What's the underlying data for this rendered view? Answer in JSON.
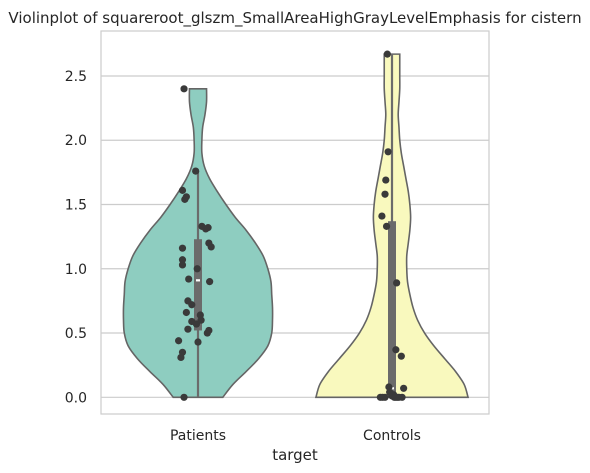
{
  "chart_data": {
    "type": "violin",
    "title": "Violinplot of squareroot_glszm_SmallAreaHighGrayLevelEmphasis for cistern",
    "xlabel": "target",
    "ylabel": "",
    "categories": [
      "Patients",
      "Controls"
    ],
    "ylim": [
      -0.13,
      2.85
    ],
    "yticks": [
      0.0,
      0.5,
      1.0,
      1.5,
      2.0,
      2.5
    ],
    "ytick_labels": [
      "0.0",
      "0.5",
      "1.0",
      "1.5",
      "2.0",
      "2.5"
    ],
    "grid": "horizontal",
    "legend": "none",
    "colors": {
      "Patients": "#8ecdc0",
      "Controls": "#f9f9be",
      "outline": "#656565",
      "points": "#3a3a3a",
      "box": "#6b6b6b",
      "grid": "#cccccc"
    },
    "violins": [
      {
        "category": "Patients",
        "min": 0.0,
        "max": 2.4,
        "q1": 0.52,
        "median": 0.91,
        "q3": 1.23,
        "whisker_low": 0.0,
        "whisker_high": 1.76,
        "density": [
          [
            0.0,
            0.32
          ],
          [
            0.1,
            0.45
          ],
          [
            0.2,
            0.62
          ],
          [
            0.3,
            0.78
          ],
          [
            0.4,
            0.9
          ],
          [
            0.5,
            0.95
          ],
          [
            0.6,
            0.96
          ],
          [
            0.7,
            0.96
          ],
          [
            0.8,
            0.95
          ],
          [
            0.9,
            0.94
          ],
          [
            1.0,
            0.9
          ],
          [
            1.1,
            0.84
          ],
          [
            1.2,
            0.74
          ],
          [
            1.3,
            0.62
          ],
          [
            1.4,
            0.48
          ],
          [
            1.5,
            0.36
          ],
          [
            1.6,
            0.25
          ],
          [
            1.7,
            0.15
          ],
          [
            1.8,
            0.08
          ],
          [
            1.9,
            0.05
          ],
          [
            2.0,
            0.05
          ],
          [
            2.1,
            0.06
          ],
          [
            2.2,
            0.09
          ],
          [
            2.3,
            0.11
          ],
          [
            2.4,
            0.11
          ]
        ],
        "points": [
          [
            0.0,
            -0.18
          ],
          [
            0.31,
            -0.22
          ],
          [
            0.35,
            -0.2
          ],
          [
            0.44,
            -0.25
          ],
          [
            0.43,
            0.0
          ],
          [
            0.5,
            0.12
          ],
          [
            0.52,
            0.14
          ],
          [
            0.53,
            -0.13
          ],
          [
            0.57,
            -0.02
          ],
          [
            0.59,
            -0.08
          ],
          [
            0.6,
            0.04
          ],
          [
            0.64,
            0.03
          ],
          [
            0.66,
            -0.15
          ],
          [
            0.72,
            -0.08
          ],
          [
            0.75,
            -0.13
          ],
          [
            0.9,
            0.15
          ],
          [
            0.92,
            -0.12
          ],
          [
            1.0,
            -0.01
          ],
          [
            1.03,
            -0.2
          ],
          [
            1.07,
            -0.2
          ],
          [
            1.16,
            -0.2
          ],
          [
            1.17,
            0.17
          ],
          [
            1.2,
            0.14
          ],
          [
            1.31,
            0.1
          ],
          [
            1.32,
            0.13
          ],
          [
            1.33,
            0.05
          ],
          [
            1.54,
            -0.17
          ],
          [
            1.56,
            -0.15
          ],
          [
            1.61,
            -0.2
          ],
          [
            1.76,
            -0.03
          ],
          [
            2.4,
            -0.18
          ]
        ]
      },
      {
        "category": "Controls",
        "min": 0.0,
        "max": 2.67,
        "q1": 0.0,
        "median": 0.07,
        "q3": 1.37,
        "whisker_low": 0.0,
        "whisker_high": 2.67,
        "density": [
          [
            0.0,
            0.98
          ],
          [
            0.1,
            0.93
          ],
          [
            0.2,
            0.82
          ],
          [
            0.3,
            0.68
          ],
          [
            0.4,
            0.54
          ],
          [
            0.5,
            0.42
          ],
          [
            0.6,
            0.33
          ],
          [
            0.7,
            0.27
          ],
          [
            0.8,
            0.23
          ],
          [
            0.9,
            0.2
          ],
          [
            1.0,
            0.19
          ],
          [
            1.1,
            0.19
          ],
          [
            1.2,
            0.21
          ],
          [
            1.3,
            0.23
          ],
          [
            1.4,
            0.24
          ],
          [
            1.5,
            0.23
          ],
          [
            1.6,
            0.21
          ],
          [
            1.7,
            0.18
          ],
          [
            1.8,
            0.15
          ],
          [
            1.9,
            0.12
          ],
          [
            2.0,
            0.1
          ],
          [
            2.1,
            0.09
          ],
          [
            2.2,
            0.08
          ],
          [
            2.3,
            0.09
          ],
          [
            2.4,
            0.1
          ],
          [
            2.5,
            0.1
          ],
          [
            2.6,
            0.1
          ],
          [
            2.67,
            0.1
          ]
        ],
        "points": [
          [
            0.0,
            -0.15
          ],
          [
            0.0,
            -0.12
          ],
          [
            0.0,
            -0.09
          ],
          [
            0.0,
            0.03
          ],
          [
            0.0,
            0.05
          ],
          [
            0.0,
            0.07
          ],
          [
            0.0,
            0.09
          ],
          [
            0.0,
            0.13
          ],
          [
            0.01,
            0.0
          ],
          [
            0.02,
            0.02
          ],
          [
            0.04,
            -0.03
          ],
          [
            0.07,
            0.15
          ],
          [
            0.08,
            -0.04
          ],
          [
            0.32,
            0.12
          ],
          [
            0.37,
            0.05
          ],
          [
            0.89,
            0.06
          ],
          [
            1.33,
            -0.07
          ],
          [
            1.41,
            -0.13
          ],
          [
            1.58,
            -0.09
          ],
          [
            1.69,
            -0.08
          ],
          [
            1.91,
            -0.05
          ],
          [
            2.67,
            -0.06
          ]
        ]
      }
    ]
  }
}
